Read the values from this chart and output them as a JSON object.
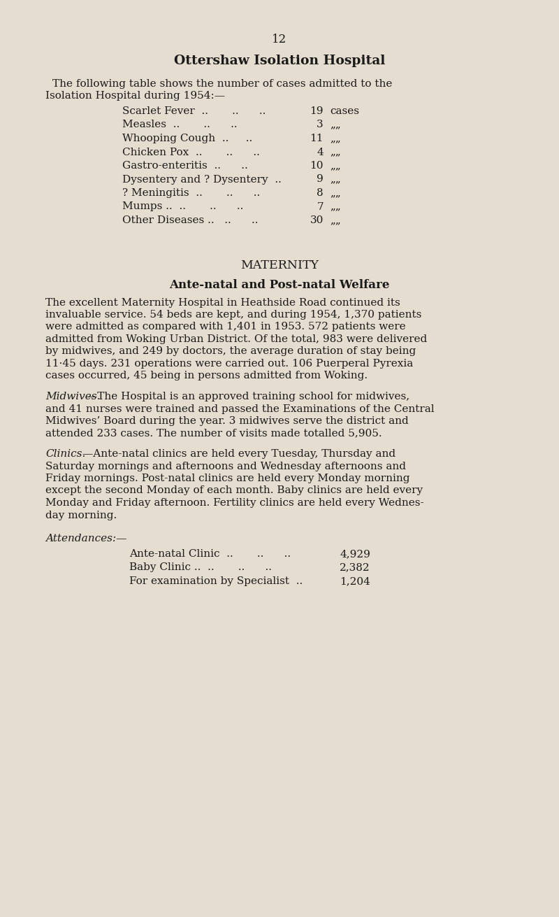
{
  "bg_color": "#e5ddd0",
  "text_color": "#1a1a1a",
  "page_number": "12",
  "title": "Ottershaw Isolation Hospital",
  "intro_line1": "The following table shows the number of cases admitted to the",
  "intro_line2": "Isolation Hospital during 1954:—",
  "table_rows": [
    [
      "Scarlet Fever  ..       ..      ..",
      "19",
      "cases"
    ],
    [
      "Measles  ..       ..      ..",
      "3",
      "„„"
    ],
    [
      "Whooping Cough  ..     ..",
      "11",
      "„„"
    ],
    [
      "Chicken Pox  ..       ..      ..",
      "4",
      "„„"
    ],
    [
      "Gastro-enteritis  ..      ..",
      "10",
      "„„"
    ],
    [
      "Dysentery and ? Dysentery  ..",
      "9",
      "„„"
    ],
    [
      "? Meningitis  ..       ..      ..",
      "8",
      "„„"
    ],
    [
      "Mumps ..  ..       ..      ..",
      "7",
      "„„"
    ],
    [
      "Other Diseases ..   ..      ..",
      "30",
      "„„"
    ]
  ],
  "section_title": "MATERNITY",
  "subsection_title": "Ante-natal and Post-natal Welfare",
  "para1_lines": [
    "The excellent Maternity Hospital in Heathside Road continued its",
    "invaluable service. 54 beds are kept, and during 1954, 1,370 patients",
    "were admitted as compared with 1,401 in 1953. 572 patients were",
    "admitted from Woking Urban District. Of the total, 983 were delivered",
    "by midwives, and 249 by doctors, the average duration of stay being",
    "11·45 days. 231 operations were carried out. 106 Puerperal Pyrexia",
    "cases occurred, 45 being in persons admitted from Woking."
  ],
  "para2_italic": "Midwives.",
  "para2_lines": [
    "—The Hospital is an approved training school for midwives,",
    "and 41 nurses were trained and passed the Examinations of the Central",
    "Midwives’ Board during the year. 3 midwives serve the district and",
    "attended 233 cases. The number of visits made totalled 5,905."
  ],
  "para3_italic": "Clinics.",
  "para3_lines": [
    "—Ante-natal clinics are held every Tuesday, Thursday and",
    "Saturday mornings and afternoons and Wednesday afternoons and",
    "Friday mornings. Post-natal clinics are held every Monday morning",
    "except the second Monday of each month. Baby clinics are held every",
    "Monday and Friday afternoon. Fertility clinics are held every Wednes-",
    "day morning."
  ],
  "attendances_label": "Attendances:—",
  "attendance_rows": [
    [
      "Ante-natal Clinic  ..       ..      ..",
      "4,929"
    ],
    [
      "Baby Clinic ..  ..       ..      ..",
      "2,382"
    ],
    [
      "For examination by Specialist  ..",
      "1,204"
    ]
  ],
  "fs_body": 11.0,
  "fs_title": 13.5,
  "fs_section": 12.5,
  "fs_page": 12.0,
  "lh": 0.01335
}
